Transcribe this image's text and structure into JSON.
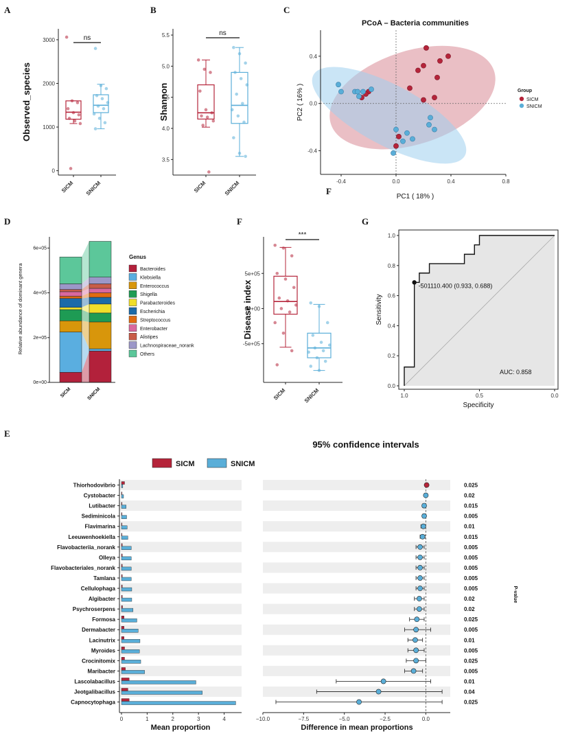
{
  "colors": {
    "sicm": "#b5243a",
    "snicm": "#5aaed8",
    "sicm_fill": "#d98a96",
    "snicm_fill": "#a9d3ee",
    "band": "#eeeeee"
  },
  "chart_data": [
    {
      "id": "A",
      "type": "box",
      "panel_label": "A",
      "ylabel": "Observed_species",
      "yticks": [
        0,
        1000,
        2000,
        3000
      ],
      "ylim": [
        -100,
        3250
      ],
      "categories": [
        "SICM",
        "SNICM"
      ],
      "significance": "ns",
      "boxes": [
        {
          "name": "SICM",
          "q1": 1180,
          "median": 1340,
          "q3": 1600,
          "whisker_low": 1080,
          "whisker_high": 1600,
          "points": [
            3060,
            1600,
            1560,
            1420,
            1330,
            1280,
            1200,
            1140,
            1080,
            50
          ]
        },
        {
          "name": "SNICM",
          "q1": 1330,
          "median": 1500,
          "q3": 1740,
          "whisker_low": 960,
          "whisker_high": 1980,
          "points": [
            2800,
            1950,
            1880,
            1720,
            1650,
            1560,
            1480,
            1420,
            1300,
            1200,
            1100,
            960
          ]
        }
      ]
    },
    {
      "id": "B",
      "type": "box",
      "panel_label": "B",
      "ylabel": "Shannon",
      "yticks": [
        3.5,
        4.0,
        4.5,
        5.0,
        5.5
      ],
      "ylim": [
        3.25,
        5.6
      ],
      "categories": [
        "SICM",
        "SNICM"
      ],
      "significance": "ns",
      "boxes": [
        {
          "name": "SICM",
          "q1": 4.15,
          "median": 4.25,
          "q3": 4.7,
          "whisker_low": 4.02,
          "whisker_high": 5.1,
          "points": [
            5.1,
            4.95,
            4.9,
            4.6,
            4.3,
            4.25,
            4.2,
            4.18,
            4.12,
            4.05,
            3.3
          ]
        },
        {
          "name": "SNICM",
          "q1": 4.08,
          "median": 4.37,
          "q3": 4.9,
          "whisker_low": 3.55,
          "whisker_high": 5.3,
          "points": [
            5.3,
            5.2,
            5.05,
            4.9,
            4.8,
            4.7,
            4.55,
            4.4,
            4.3,
            4.2,
            4.1,
            3.85,
            3.6,
            3.55
          ]
        }
      ]
    },
    {
      "id": "C",
      "type": "scatter",
      "panel_label": "C",
      "title": "PCoA –  Bacteria  communities",
      "xlabel": "PC1 ( 18% )",
      "ylabel": "PC2 ( 16% )",
      "xlim": [
        -0.55,
        0.8
      ],
      "ylim": [
        -0.6,
        0.62
      ],
      "xticks": [
        -0.4,
        0.0,
        0.4,
        0.8
      ],
      "yticks": [
        -0.4,
        0.0,
        0.4
      ],
      "legend": {
        "title": "Group",
        "items": [
          "SICM",
          "SNICM"
        ]
      },
      "series": [
        {
          "name": "SICM",
          "points": [
            [
              0.22,
              0.47
            ],
            [
              0.38,
              0.4
            ],
            [
              0.2,
              0.32
            ],
            [
              0.32,
              0.36
            ],
            [
              0.3,
              0.22
            ],
            [
              0.16,
              0.28
            ],
            [
              0.1,
              0.13
            ],
            [
              0.28,
              0.05
            ],
            [
              0.2,
              0.03
            ],
            [
              -0.2,
              0.1
            ],
            [
              -0.22,
              0.08
            ],
            [
              -0.25,
              0.05
            ],
            [
              0.02,
              -0.28
            ],
            [
              0.0,
              -0.36
            ]
          ]
        },
        {
          "name": "SNICM",
          "points": [
            [
              -0.42,
              0.16
            ],
            [
              -0.4,
              0.1
            ],
            [
              -0.3,
              0.1
            ],
            [
              -0.28,
              0.1
            ],
            [
              -0.24,
              0.1
            ],
            [
              -0.18,
              0.12
            ],
            [
              -0.27,
              0.06
            ],
            [
              0.0,
              -0.22
            ],
            [
              0.08,
              -0.25
            ],
            [
              0.12,
              -0.3
            ],
            [
              0.25,
              -0.12
            ],
            [
              0.28,
              -0.22
            ],
            [
              0.24,
              -0.18
            ],
            [
              0.05,
              -0.32
            ],
            [
              -0.02,
              -0.42
            ]
          ]
        }
      ]
    },
    {
      "id": "D",
      "type": "stacked_bar",
      "panel_label": "D",
      "ylabel": "Relative abundance of dominant genera",
      "yticks": [
        "0e+00",
        "2e+05",
        "4e+05",
        "6e+05"
      ],
      "ylim": [
        0,
        650000
      ],
      "categories": [
        "SICM",
        "SNICM"
      ],
      "legend_title": "Genus",
      "series": [
        {
          "name": "Bacteroides",
          "color": "#b3213b",
          "values": [
            45000,
            140000
          ]
        },
        {
          "name": "Klebsiella",
          "color": "#5aaee0",
          "values": [
            180000,
            10000
          ]
        },
        {
          "name": "Enterococcus",
          "color": "#d8960b",
          "values": [
            50000,
            120000
          ]
        },
        {
          "name": "Shigella",
          "color": "#1e9b54",
          "values": [
            50000,
            40000
          ]
        },
        {
          "name": "Parabacteroides",
          "color": "#f0de2a",
          "values": [
            10000,
            40000
          ]
        },
        {
          "name": "Escherichia",
          "color": "#1c6aa8",
          "values": [
            40000,
            30000
          ]
        },
        {
          "name": "Streptococcus",
          "color": "#e06b11",
          "values": [
            10000,
            20000
          ]
        },
        {
          "name": "Enterobacter",
          "color": "#d9689e",
          "values": [
            20000,
            20000
          ]
        },
        {
          "name": "Alistipes",
          "color": "#c85c48",
          "values": [
            10000,
            20000
          ]
        },
        {
          "name": "Lachnospiraceae_norank",
          "color": "#9c97c8",
          "values": [
            25000,
            30000
          ]
        },
        {
          "name": "Others",
          "color": "#5cc79a",
          "values": [
            120000,
            160000
          ]
        }
      ]
    },
    {
      "id": "F",
      "type": "box",
      "panel_label": "F",
      "ylabel": "Disease index",
      "yticks": [
        "-5e+05",
        "0e+00",
        "5e+05"
      ],
      "ylim": [
        -1050000,
        1020000
      ],
      "categories": [
        "SICM",
        "SNICM"
      ],
      "significance": "***",
      "boxes": [
        {
          "name": "SICM",
          "q1": -80000,
          "median": 100000,
          "q3": 460000,
          "whisker_low": -550000,
          "whisker_high": 870000,
          "points": [
            900000,
            860000,
            750000,
            500000,
            420000,
            300000,
            150000,
            110000,
            50000,
            0,
            -50000,
            -200000,
            -350000,
            -600000,
            -800000
          ]
        },
        {
          "name": "SNICM",
          "q1": -700000,
          "median": -560000,
          "q3": -350000,
          "whisker_low": -880000,
          "whisker_high": 60000,
          "points": [
            80000,
            30000,
            -200000,
            -380000,
            -480000,
            -520000,
            -560000,
            -600000,
            -620000,
            -700000,
            -750000,
            -820000,
            -880000
          ]
        }
      ]
    },
    {
      "id": "G",
      "type": "line",
      "panel_label": "G",
      "xlabel": "Specificity",
      "ylabel": "Sensitivity",
      "xticks": [
        "1.0",
        "0.5",
        "0.0"
      ],
      "yticks": [
        "0.0",
        "0.2",
        "0.4",
        "0.6",
        "0.8",
        "1.0"
      ],
      "xlim": [
        1.0,
        0.0
      ],
      "ylim": [
        0.0,
        1.0
      ],
      "roc": [
        [
          1.0,
          0.0
        ],
        [
          1.0,
          0.125
        ],
        [
          0.933,
          0.125
        ],
        [
          0.933,
          0.688
        ],
        [
          0.9,
          0.688
        ],
        [
          0.9,
          0.75
        ],
        [
          0.833,
          0.75
        ],
        [
          0.833,
          0.8125
        ],
        [
          0.767,
          0.8125
        ],
        [
          0.767,
          0.8125
        ],
        [
          0.6,
          0.8125
        ],
        [
          0.6,
          0.875
        ],
        [
          0.533,
          0.875
        ],
        [
          0.533,
          0.9375
        ],
        [
          0.5,
          0.9375
        ],
        [
          0.5,
          1.0
        ],
        [
          0.0,
          1.0
        ]
      ],
      "threshold_point": [
        0.933,
        0.688
      ],
      "threshold_label": "-501110.400 (0.933, 0.688)",
      "auc_label": "AUC: 0.858"
    },
    {
      "id": "E",
      "type": "extended_error_bar",
      "panel_label": "E",
      "title": "95% confidence intervals",
      "legend": [
        "SICM",
        "SNICM"
      ],
      "left_xlabel": "Mean proportion",
      "left_xticks": [
        0,
        1,
        2,
        3,
        4
      ],
      "left_xlim": [
        0,
        4.6
      ],
      "right_xlabel": "Difference in mean proportions",
      "right_xticks": [
        -10.0,
        -7.5,
        -5.0,
        -2.5,
        0.0
      ],
      "right_xlim": [
        -10.0,
        1.5
      ],
      "pvalue_label": "P-value",
      "genera": [
        "Thiorhodovibrio",
        "Cystobacter",
        "Lutibacter",
        "Sediminicola",
        "Flavimarina",
        "Leeuwenhoekiella",
        "Flavobacteriia_norank",
        "Olleya",
        "Flavobacteriales_norank",
        "Tamlana",
        "Cellulophaga",
        "Algibacter",
        "Psychroserpens",
        "Formosa",
        "Dermabacter",
        "Lacinutrix",
        "Myroides",
        "Crocinitomix",
        "Maribacter",
        "Lascolabacillus",
        "Jeotgalibacillus",
        "Capnocytophaga"
      ],
      "sicm": [
        0.12,
        0.02,
        0.02,
        0.02,
        0.02,
        0.02,
        0.03,
        0.03,
        0.03,
        0.03,
        0.03,
        0.03,
        0.04,
        0.1,
        0.1,
        0.1,
        0.12,
        0.12,
        0.15,
        0.3,
        0.25,
        0.3
      ],
      "snicm": [
        0.05,
        0.08,
        0.18,
        0.2,
        0.22,
        0.25,
        0.38,
        0.38,
        0.38,
        0.38,
        0.4,
        0.4,
        0.45,
        0.6,
        0.65,
        0.72,
        0.7,
        0.75,
        0.9,
        2.9,
        3.15,
        4.45
      ],
      "diff": [
        0.05,
        0.0,
        -0.1,
        -0.1,
        -0.15,
        -0.2,
        -0.35,
        -0.35,
        -0.35,
        -0.35,
        -0.35,
        -0.4,
        -0.4,
        -0.55,
        -0.6,
        -0.65,
        -0.6,
        -0.6,
        -0.75,
        -2.6,
        -2.9,
        -4.1
      ],
      "ci_low": [
        0.0,
        -0.05,
        -0.2,
        -0.2,
        -0.3,
        -0.35,
        -0.6,
        -0.6,
        -0.6,
        -0.6,
        -0.6,
        -0.7,
        -0.7,
        -1.0,
        -1.3,
        -1.1,
        -1.1,
        -1.2,
        -1.3,
        -5.5,
        -6.7,
        -9.2
      ],
      "ci_high": [
        0.1,
        0.05,
        -0.02,
        -0.02,
        -0.05,
        -0.05,
        -0.1,
        -0.1,
        -0.1,
        -0.1,
        -0.1,
        -0.1,
        -0.1,
        -0.1,
        0.3,
        -0.2,
        -0.1,
        0.0,
        -0.2,
        0.3,
        1.0,
        1.0
      ],
      "pvalues": [
        "0.025",
        "0.02",
        "0.015",
        "0.005",
        "0.01",
        "0.015",
        "0.005",
        "0.005",
        "0.005",
        "0.005",
        "0.005",
        "0.02",
        "0.02",
        "0.025",
        "0.005",
        "0.01",
        "0.005",
        "0.025",
        "0.005",
        "0.01",
        "0.04",
        "0.025"
      ]
    }
  ]
}
